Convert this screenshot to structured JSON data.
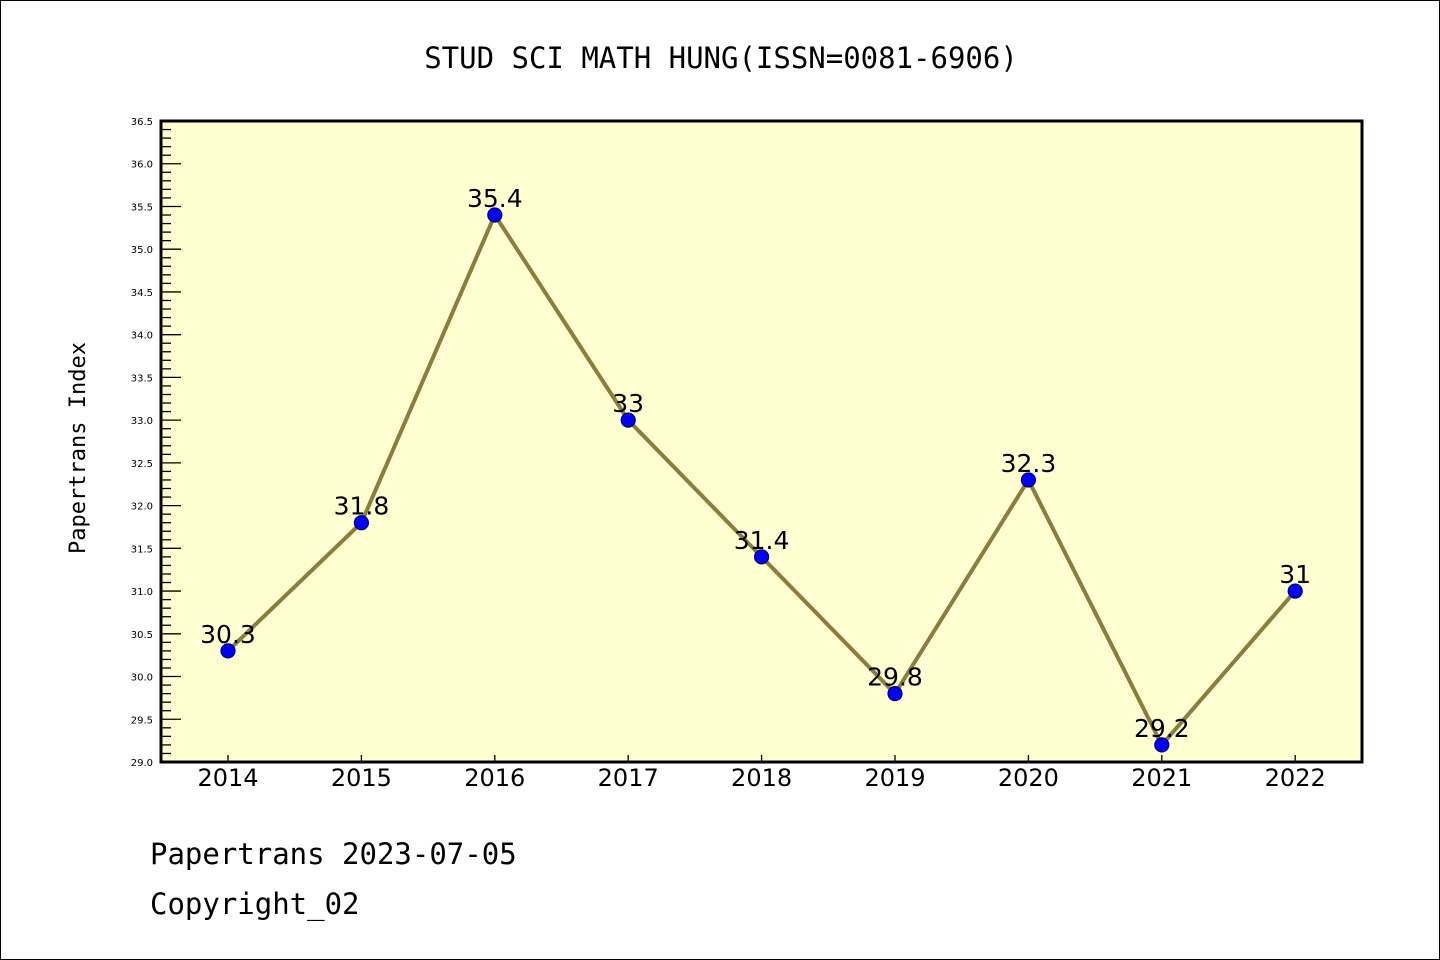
{
  "chart_data": {
    "type": "line",
    "title": "STUD SCI MATH HUNG(ISSN=0081-6906)",
    "xlabel": "",
    "ylabel": "Papertrans Index",
    "x": [
      "2014",
      "2015",
      "2016",
      "2017",
      "2018",
      "2019",
      "2020",
      "2021",
      "2022"
    ],
    "series": [
      {
        "name": "Papertrans Index",
        "values": [
          30.3,
          31.8,
          35.4,
          33,
          31.4,
          29.8,
          32.3,
          29.2,
          31
        ],
        "labels": [
          "30.3",
          "31.8",
          "35.4",
          "33",
          "31.4",
          "29.8",
          "32.3",
          "29.2",
          "31"
        ]
      }
    ],
    "ylim": [
      29.0,
      36.5
    ],
    "yticks": [
      "29.0",
      "29.5",
      "30.0",
      "30.5",
      "31.0",
      "31.5",
      "32.0",
      "32.5",
      "33.0",
      "33.5",
      "34.0",
      "34.5",
      "35.0",
      "35.5",
      "36.0",
      "36.5"
    ],
    "grid": false,
    "colors": {
      "line": "#8b7d3a",
      "marker": "#0000ff",
      "plot_bg": "#ffffd2"
    }
  },
  "footer": {
    "line1": "Papertrans 2023-07-05",
    "line2": "Copyright_02"
  }
}
